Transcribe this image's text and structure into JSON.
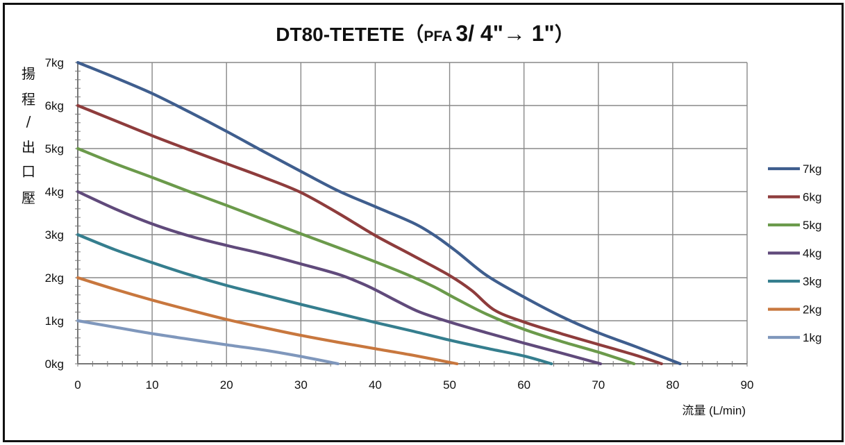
{
  "chart_data": {
    "type": "line",
    "title_main": "DT80-TETETE（",
    "title_pfa": "PFA",
    "title_size": "3/ 4\"→ 1\"",
    "title_close": "）",
    "ylabel_chars": [
      "揚",
      "程",
      "/",
      "出",
      "口",
      "壓"
    ],
    "xlabel": "流量 (L/min)",
    "xlim": [
      0,
      90
    ],
    "ylim": [
      0,
      7
    ],
    "x_ticks": [
      "0",
      "10",
      "20",
      "30",
      "40",
      "50",
      "60",
      "70",
      "80",
      "90"
    ],
    "y_ticks": [
      "0kg",
      "1kg",
      "2kg",
      "3kg",
      "4kg",
      "5kg",
      "6kg",
      "7kg"
    ],
    "grid": true,
    "legend_position": "right",
    "series": [
      {
        "name": "7kg",
        "color": "#3f5e8e",
        "points": [
          [
            0,
            7
          ],
          [
            5,
            6.65
          ],
          [
            10,
            6.28
          ],
          [
            15,
            5.85
          ],
          [
            20,
            5.4
          ],
          [
            25,
            4.93
          ],
          [
            30,
            4.47
          ],
          [
            35,
            4.02
          ],
          [
            40,
            3.65
          ],
          [
            45,
            3.28
          ],
          [
            48,
            2.98
          ],
          [
            51,
            2.6
          ],
          [
            55,
            2.05
          ],
          [
            60,
            1.55
          ],
          [
            65,
            1.1
          ],
          [
            70,
            0.72
          ],
          [
            75,
            0.4
          ],
          [
            81,
            0
          ]
        ]
      },
      {
        "name": "6kg",
        "color": "#8e3c3c",
        "points": [
          [
            0,
            6
          ],
          [
            5,
            5.65
          ],
          [
            10,
            5.3
          ],
          [
            15,
            4.97
          ],
          [
            20,
            4.65
          ],
          [
            25,
            4.33
          ],
          [
            30,
            3.98
          ],
          [
            35,
            3.5
          ],
          [
            40,
            2.98
          ],
          [
            45,
            2.52
          ],
          [
            50,
            2.05
          ],
          [
            53,
            1.7
          ],
          [
            56,
            1.25
          ],
          [
            60,
            0.97
          ],
          [
            65,
            0.7
          ],
          [
            70,
            0.45
          ],
          [
            75,
            0.2
          ],
          [
            78.5,
            0
          ]
        ]
      },
      {
        "name": "5kg",
        "color": "#6b9a4b",
        "points": [
          [
            0,
            5
          ],
          [
            5,
            4.65
          ],
          [
            10,
            4.33
          ],
          [
            15,
            4
          ],
          [
            20,
            3.68
          ],
          [
            25,
            3.35
          ],
          [
            30,
            3.02
          ],
          [
            35,
            2.7
          ],
          [
            40,
            2.37
          ],
          [
            45,
            2.02
          ],
          [
            48,
            1.78
          ],
          [
            51,
            1.5
          ],
          [
            55,
            1.15
          ],
          [
            60,
            0.8
          ],
          [
            65,
            0.52
          ],
          [
            70,
            0.27
          ],
          [
            74.8,
            0
          ]
        ]
      },
      {
        "name": "4kg",
        "color": "#604a7b",
        "points": [
          [
            0,
            4
          ],
          [
            5,
            3.6
          ],
          [
            10,
            3.25
          ],
          [
            15,
            2.97
          ],
          [
            20,
            2.75
          ],
          [
            25,
            2.55
          ],
          [
            30,
            2.32
          ],
          [
            35,
            2.08
          ],
          [
            38,
            1.88
          ],
          [
            40,
            1.72
          ],
          [
            43,
            1.45
          ],
          [
            46,
            1.2
          ],
          [
            50,
            0.97
          ],
          [
            55,
            0.72
          ],
          [
            60,
            0.48
          ],
          [
            65,
            0.25
          ],
          [
            70.3,
            0
          ]
        ]
      },
      {
        "name": "3kg",
        "color": "#357e8e",
        "points": [
          [
            0,
            3
          ],
          [
            5,
            2.65
          ],
          [
            10,
            2.35
          ],
          [
            15,
            2.07
          ],
          [
            20,
            1.82
          ],
          [
            25,
            1.6
          ],
          [
            30,
            1.38
          ],
          [
            35,
            1.17
          ],
          [
            40,
            0.96
          ],
          [
            45,
            0.76
          ],
          [
            50,
            0.55
          ],
          [
            55,
            0.36
          ],
          [
            60,
            0.18
          ],
          [
            63.7,
            0
          ]
        ]
      },
      {
        "name": "2kg",
        "color": "#c8773e",
        "points": [
          [
            0,
            2
          ],
          [
            5,
            1.73
          ],
          [
            10,
            1.48
          ],
          [
            15,
            1.25
          ],
          [
            20,
            1.03
          ],
          [
            25,
            0.84
          ],
          [
            30,
            0.66
          ],
          [
            35,
            0.5
          ],
          [
            40,
            0.35
          ],
          [
            45,
            0.2
          ],
          [
            51,
            0
          ]
        ]
      },
      {
        "name": "1kg",
        "color": "#7f97bc",
        "points": [
          [
            0,
            1
          ],
          [
            5,
            0.85
          ],
          [
            10,
            0.7
          ],
          [
            15,
            0.57
          ],
          [
            20,
            0.44
          ],
          [
            25,
            0.32
          ],
          [
            30,
            0.17
          ],
          [
            35,
            0
          ]
        ]
      }
    ]
  }
}
